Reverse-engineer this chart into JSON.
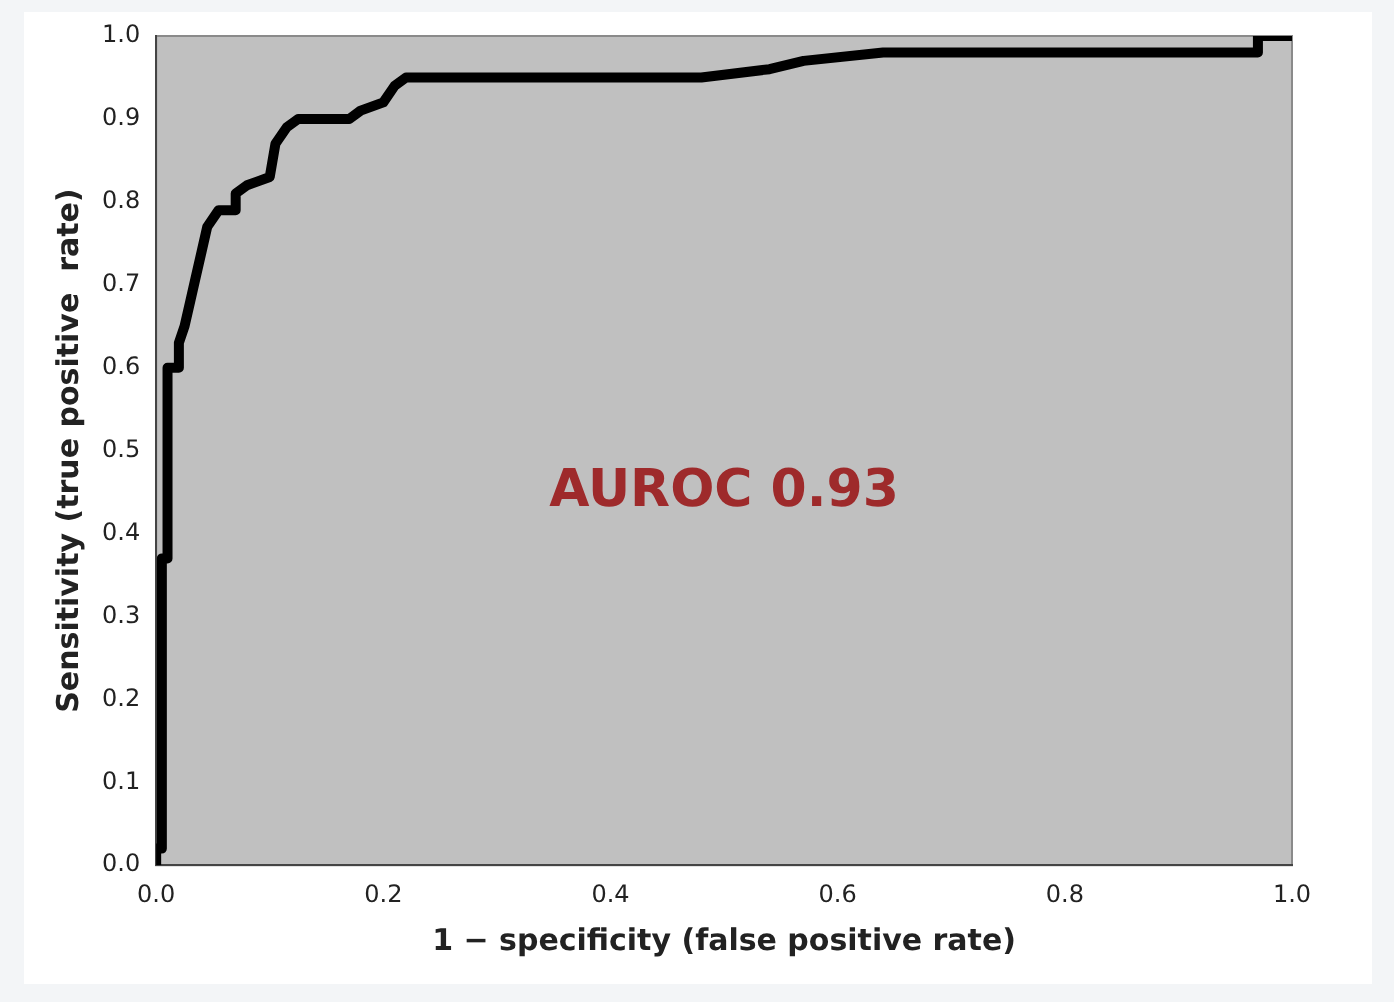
{
  "chart_data": {
    "type": "line",
    "xlabel": "1 − specificity (false positive rate)",
    "ylabel": "Sensitivity (true positive  rate)",
    "annotations": [
      "AUROC 0.93"
    ],
    "series": [
      {
        "color": "#000000",
        "x": [
          0,
          0,
          0.005,
          0.005,
          0.01,
          0.01,
          0.02,
          0.02,
          0.025,
          0.03,
          0.035,
          0.04,
          0.045,
          0.055,
          0.07,
          0.07,
          0.08,
          0.1,
          0.105,
          0.115,
          0.125,
          0.17,
          0.18,
          0.2,
          0.21,
          0.22,
          0.48,
          0.54,
          0.57,
          0.64,
          0.97,
          0.97,
          1.0
        ],
        "values": [
          0,
          0.02,
          0.02,
          0.37,
          0.37,
          0.6,
          0.6,
          0.63,
          0.65,
          0.68,
          0.71,
          0.74,
          0.77,
          0.79,
          0.79,
          0.81,
          0.82,
          0.83,
          0.87,
          0.89,
          0.9,
          0.9,
          0.91,
          0.92,
          0.94,
          0.95,
          0.95,
          0.96,
          0.97,
          0.98,
          0.98,
          1.0,
          1.0
        ]
      }
    ],
    "xlim": [
      0,
      1
    ],
    "ylim": [
      0,
      1
    ],
    "xticks": [
      {
        "value": 0,
        "label": "0.0"
      },
      {
        "value": 0.2,
        "label": "0.2"
      },
      {
        "value": 0.4,
        "label": "0.4"
      },
      {
        "value": 0.6,
        "label": "0.6"
      },
      {
        "value": 0.8,
        "label": "0.8"
      },
      {
        "value": 1,
        "label": "1.0"
      }
    ],
    "yticks": [
      {
        "value": 0,
        "label": "0.0"
      },
      {
        "value": 0.1,
        "label": "0.1"
      },
      {
        "value": 0.2,
        "label": "0.2"
      },
      {
        "value": 0.3,
        "label": "0.3"
      },
      {
        "value": 0.4,
        "label": "0.4"
      },
      {
        "value": 0.5,
        "label": "0.5"
      },
      {
        "value": 0.6,
        "label": "0.6"
      },
      {
        "value": 0.7,
        "label": "0.7"
      },
      {
        "value": 0.8,
        "label": "0.8"
      },
      {
        "value": 0.9,
        "label": "0.9"
      },
      {
        "value": 1,
        "label": "1.0"
      }
    ],
    "grid": false,
    "legend": false,
    "marker": "none",
    "line_style": "solid"
  }
}
